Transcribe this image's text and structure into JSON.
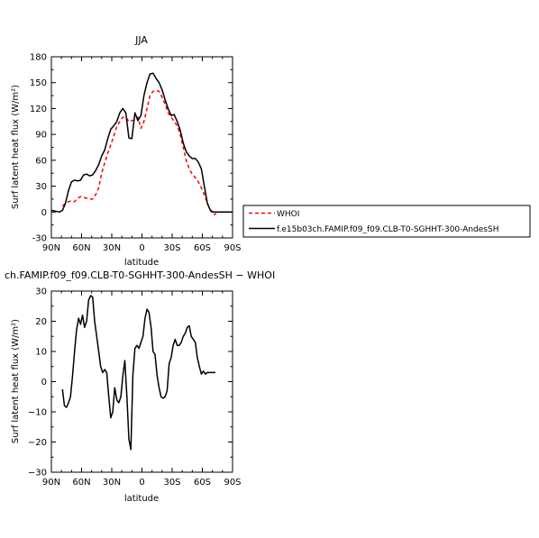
{
  "chart_data": [
    {
      "type": "line",
      "title": "JJA",
      "xlabel": "latitude",
      "ylabel": "Surf latent heat flux (W/m²)",
      "xlim": [
        90,
        -90
      ],
      "ylim": [
        -30,
        180
      ],
      "xticks": [
        90,
        60,
        30,
        0,
        -30,
        -60,
        -90
      ],
      "xtick_labels": [
        "90N",
        "60N",
        "30N",
        "0",
        "30S",
        "60S",
        "90S"
      ],
      "yticks": [
        -30,
        0,
        30,
        60,
        90,
        120,
        150,
        180
      ],
      "ytick_labels": [
        "-30",
        "0",
        "30",
        "60",
        "90",
        "120",
        "150",
        "180"
      ],
      "legend_position": "right",
      "series": [
        {
          "name": "WHOI",
          "color": "#ff0000",
          "dash": "dashed",
          "x": [
            79,
            76,
            73,
            70,
            67,
            64,
            61,
            58,
            55,
            52,
            49,
            46,
            43,
            40,
            37,
            34,
            31,
            28,
            25,
            22,
            19,
            16,
            13,
            10,
            7,
            4,
            1,
            -2,
            -5,
            -8,
            -11,
            -14,
            -17,
            -20,
            -23,
            -26,
            -29,
            -32,
            -35,
            -38,
            -41,
            -44,
            -47,
            -50,
            -53,
            -56,
            -59,
            -62,
            -65,
            -68,
            -71,
            -74
          ],
          "y": [
            7,
            10,
            12,
            13,
            12,
            16,
            18,
            17,
            16,
            15,
            15,
            20,
            28,
            45,
            57,
            68,
            78,
            88,
            99,
            105,
            110,
            110,
            105,
            106,
            107,
            110,
            97,
            105,
            120,
            135,
            140,
            141,
            140,
            133,
            125,
            115,
            110,
            105,
            100,
            90,
            75,
            60,
            50,
            44,
            40,
            35,
            28,
            20,
            10,
            2,
            -3,
            -2
          ]
        },
        {
          "name": "f.e15b03ch.FAMIP.f09_f09.CLB-T0-SGHHT-300-AndesSH",
          "color": "#000000",
          "dash": "solid",
          "x": [
            90,
            86,
            82,
            79,
            76,
            73,
            70,
            67,
            64,
            61,
            58,
            55,
            52,
            49,
            46,
            43,
            40,
            37,
            34,
            31,
            28,
            25,
            22,
            19,
            16,
            13,
            10,
            7,
            4,
            1,
            -2,
            -5,
            -8,
            -11,
            -14,
            -17,
            -20,
            -23,
            -26,
            -29,
            -32,
            -35,
            -38,
            -41,
            -44,
            -47,
            -50,
            -53,
            -56,
            -59,
            -62,
            -65,
            -68,
            -71,
            -74,
            -78,
            -82,
            -86,
            -90
          ],
          "y": [
            2,
            1,
            0,
            2,
            10,
            25,
            35,
            37,
            36,
            37,
            43,
            44,
            42,
            43,
            48,
            55,
            65,
            72,
            85,
            96,
            100,
            105,
            115,
            120,
            115,
            86,
            85,
            115,
            106,
            112,
            135,
            150,
            160,
            161,
            155,
            150,
            142,
            130,
            120,
            112,
            113,
            105,
            95,
            80,
            70,
            65,
            62,
            62,
            58,
            50,
            30,
            10,
            2,
            0,
            0,
            0,
            0,
            0,
            0
          ]
        }
      ]
    },
    {
      "type": "line",
      "title": "ch.FAMIP.f09_f09.CLB-T0-SGHHT-300-AndesSH − WHOI",
      "xlabel": "latitude",
      "ylabel": "Surf latent heat flux (W/m²)",
      "xlim": [
        90,
        -90
      ],
      "ylim": [
        -30,
        30
      ],
      "xticks": [
        90,
        60,
        30,
        0,
        -30,
        -60,
        -90
      ],
      "xtick_labels": [
        "90N",
        "60N",
        "30N",
        "0",
        "30S",
        "60S",
        "90S"
      ],
      "yticks": [
        -30,
        -20,
        -10,
        0,
        10,
        20,
        30
      ],
      "ytick_labels": [
        "−30",
        "−20",
        "−10",
        "0",
        "10",
        "20",
        "30"
      ],
      "series": [
        {
          "color": "#000000",
          "dash": "solid",
          "x": [
            79,
            77,
            75,
            73,
            71,
            69,
            67,
            65,
            63,
            61,
            59,
            57,
            55,
            53,
            51,
            49,
            47,
            45,
            43,
            41,
            39,
            37,
            35,
            33,
            31,
            29,
            27,
            25,
            23,
            21,
            19,
            17,
            15,
            13,
            11,
            9,
            7,
            5,
            3,
            1,
            -1,
            -3,
            -5,
            -7,
            -9,
            -11,
            -13,
            -15,
            -17,
            -19,
            -21,
            -23,
            -25,
            -27,
            -29,
            -31,
            -33,
            -35,
            -37,
            -39,
            -41,
            -43,
            -45,
            -47,
            -49,
            -51,
            -53,
            -55,
            -57,
            -59,
            -61,
            -63,
            -65,
            -67,
            -69,
            -71,
            -73
          ],
          "y": [
            -2.5,
            -8,
            -8.5,
            -7,
            -5,
            2,
            10,
            17,
            21,
            19,
            22,
            18,
            20,
            27,
            28.5,
            28,
            20,
            15,
            10,
            5,
            3,
            4,
            3,
            -5,
            -12,
            -10,
            -2,
            -6,
            -7,
            -5,
            2,
            7,
            -5,
            -19,
            -22.5,
            2,
            11,
            12,
            11,
            13,
            15,
            21,
            24,
            23,
            18,
            10,
            9,
            2,
            -2,
            -5,
            -5.5,
            -5,
            -3,
            6,
            8,
            12,
            14,
            12,
            12,
            13,
            15,
            16,
            18,
            18.5,
            15,
            14,
            13,
            8,
            5,
            2.5,
            3.5,
            2.5,
            3,
            3,
            3,
            3,
            3
          ]
        }
      ]
    }
  ]
}
